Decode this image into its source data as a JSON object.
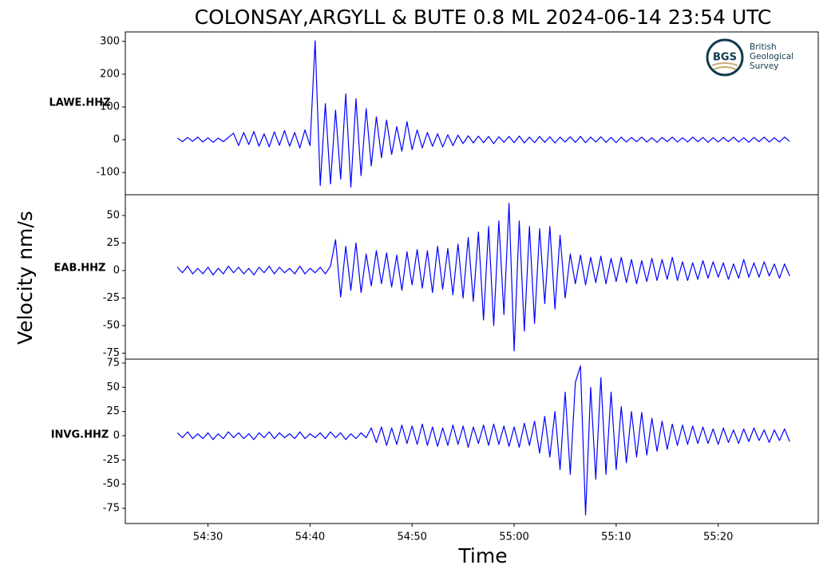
{
  "ylabel": "Velocity nm/s",
  "logo": {
    "mark": "BGS",
    "lines": [
      "British",
      "Geological",
      "Survey"
    ]
  },
  "chart_data": [
    {
      "type": "line",
      "title": "COLONSAY,ARGYLL & BUTE 0.8 ML   2024-06-14 23:54 UTC",
      "station": "LAWE.HHZ",
      "color": "#0000ff",
      "xlim": [
        21.9,
        89.8
      ],
      "ylim": [
        -168,
        329
      ],
      "yticks": [
        -100,
        0,
        100,
        200,
        300
      ],
      "x": [
        27,
        27.5,
        28,
        28.5,
        29,
        29.5,
        30,
        30.5,
        31,
        31.5,
        32,
        32.5,
        33,
        33.5,
        34,
        34.5,
        35,
        35.5,
        36,
        36.5,
        37,
        37.5,
        38,
        38.5,
        39,
        39.5,
        40,
        40.5,
        41,
        41.5,
        42,
        42.5,
        43,
        43.5,
        44,
        44.5,
        45,
        45.5,
        46,
        46.5,
        47,
        47.5,
        48,
        48.5,
        49,
        49.5,
        50,
        50.5,
        51,
        51.5,
        52,
        52.5,
        53,
        53.5,
        54,
        54.5,
        55,
        55.5,
        56,
        56.5,
        57,
        57.5,
        58,
        58.5,
        59,
        59.5,
        60,
        60.5,
        61,
        61.5,
        62,
        62.5,
        63,
        63.5,
        64,
        64.5,
        65,
        65.5,
        66,
        66.5,
        67,
        67.5,
        68,
        68.5,
        69,
        69.5,
        70,
        70.5,
        71,
        71.5,
        72,
        72.5,
        73,
        73.5,
        74,
        74.5,
        75,
        75.5,
        76,
        76.5,
        77,
        77.5,
        78,
        78.5,
        79,
        79.5,
        80,
        80.5,
        81,
        81.5,
        82,
        82.5,
        83,
        83.5,
        84,
        84.5,
        85,
        85.5,
        86,
        86.5,
        87
      ],
      "values": [
        5,
        -6,
        7,
        -5,
        8,
        -7,
        6,
        -8,
        5,
        -6,
        7,
        20,
        -18,
        22,
        -15,
        25,
        -20,
        18,
        -22,
        24,
        -17,
        28,
        -20,
        22,
        -25,
        30,
        -18,
        302,
        -140,
        110,
        -135,
        90,
        -120,
        140,
        -145,
        125,
        -110,
        95,
        -80,
        70,
        -55,
        60,
        -45,
        40,
        -35,
        55,
        -30,
        30,
        -25,
        22,
        -20,
        18,
        -22,
        15,
        -18,
        14,
        -12,
        12,
        -10,
        11,
        -9,
        10,
        -12,
        9,
        -8,
        10,
        -9,
        11,
        -10,
        8,
        -9,
        10,
        -8,
        9,
        -10,
        8,
        -7,
        9,
        -8,
        10,
        -9,
        8,
        -7,
        9,
        -8,
        7,
        -9,
        8,
        -7,
        7,
        -6,
        8,
        -7,
        6,
        -8,
        7,
        -6,
        8,
        -7,
        6,
        -7,
        8,
        -6,
        7,
        -8,
        6,
        -7,
        7,
        -6,
        8,
        -7,
        6,
        -8,
        7,
        -6,
        8,
        -7,
        6,
        -7,
        8,
        -5
      ]
    },
    {
      "type": "line",
      "station": "EAB.HHZ",
      "color": "#0000ff",
      "xlim": [
        21.9,
        89.8
      ],
      "ylim": [
        -80.4,
        68.8
      ],
      "yticks": [
        -75,
        -50,
        -25,
        0,
        25,
        50
      ],
      "x": [
        27,
        27.5,
        28,
        28.5,
        29,
        29.5,
        30,
        30.5,
        31,
        31.5,
        32,
        32.5,
        33,
        33.5,
        34,
        34.5,
        35,
        35.5,
        36,
        36.5,
        37,
        37.5,
        38,
        38.5,
        39,
        39.5,
        40,
        40.5,
        41,
        41.5,
        42,
        42.5,
        43,
        43.5,
        44,
        44.5,
        45,
        45.5,
        46,
        46.5,
        47,
        47.5,
        48,
        48.5,
        49,
        49.5,
        50,
        50.5,
        51,
        51.5,
        52,
        52.5,
        53,
        53.5,
        54,
        54.5,
        55,
        55.5,
        56,
        56.5,
        57,
        57.5,
        58,
        58.5,
        59,
        59.5,
        60,
        60.5,
        61,
        61.5,
        62,
        62.5,
        63,
        63.5,
        64,
        64.5,
        65,
        65.5,
        66,
        66.5,
        67,
        67.5,
        68,
        68.5,
        69,
        69.5,
        70,
        70.5,
        71,
        71.5,
        72,
        72.5,
        73,
        73.5,
        74,
        74.5,
        75,
        75.5,
        76,
        76.5,
        77,
        77.5,
        78,
        78.5,
        79,
        79.5,
        80,
        80.5,
        81,
        81.5,
        82,
        82.5,
        83,
        83.5,
        84,
        84.5,
        85,
        85.5,
        86,
        86.5,
        87
      ],
      "values": [
        3,
        -2,
        4,
        -3,
        2,
        -3,
        3,
        -4,
        2,
        -3,
        4,
        -2,
        3,
        -3,
        2,
        -4,
        3,
        -2,
        4,
        -3,
        3,
        -2,
        2,
        -3,
        4,
        -3,
        2,
        -2,
        3,
        -3,
        4,
        28,
        -24,
        22,
        -18,
        25,
        -20,
        15,
        -14,
        18,
        -12,
        16,
        -15,
        14,
        -18,
        17,
        -13,
        19,
        -16,
        18,
        -20,
        22,
        -17,
        20,
        -22,
        24,
        -25,
        30,
        -28,
        35,
        -45,
        40,
        -50,
        45,
        -40,
        61,
        -73,
        45,
        -55,
        40,
        -48,
        38,
        -30,
        40,
        -35,
        32,
        -25,
        15,
        -12,
        14,
        -13,
        12,
        -11,
        13,
        -12,
        11,
        -10,
        12,
        -11,
        10,
        -12,
        9,
        -10,
        11,
        -9,
        10,
        -8,
        12,
        -9,
        8,
        -9,
        7,
        -8,
        9,
        -7,
        8,
        -6,
        7,
        -8,
        6,
        -7,
        10,
        -6,
        7,
        -6,
        8,
        -5,
        6,
        -7,
        6,
        -5
      ]
    },
    {
      "type": "line",
      "station": "INVG.HHZ",
      "color": "#0000ff",
      "xlabel": "Time",
      "xlim": [
        21.9,
        89.8
      ],
      "ylim": [
        -90.7,
        79.1
      ],
      "yticks": [
        -75,
        -50,
        -25,
        0,
        25,
        50,
        75
      ],
      "xticks": [
        {
          "value": 30,
          "label": "54:30"
        },
        {
          "value": 40,
          "label": "54:40"
        },
        {
          "value": 50,
          "label": "54:50"
        },
        {
          "value": 60,
          "label": "55:00"
        },
        {
          "value": 70,
          "label": "55:10"
        },
        {
          "value": 80,
          "label": "55:20"
        }
      ],
      "x": [
        27,
        27.5,
        28,
        28.5,
        29,
        29.5,
        30,
        30.5,
        31,
        31.5,
        32,
        32.5,
        33,
        33.5,
        34,
        34.5,
        35,
        35.5,
        36,
        36.5,
        37,
        37.5,
        38,
        38.5,
        39,
        39.5,
        40,
        40.5,
        41,
        41.5,
        42,
        42.5,
        43,
        43.5,
        44,
        44.5,
        45,
        45.5,
        46,
        46.5,
        47,
        47.5,
        48,
        48.5,
        49,
        49.5,
        50,
        50.5,
        51,
        51.5,
        52,
        52.5,
        53,
        53.5,
        54,
        54.5,
        55,
        55.5,
        56,
        56.5,
        57,
        57.5,
        58,
        58.5,
        59,
        59.5,
        60,
        60.5,
        61,
        61.5,
        62,
        62.5,
        63,
        63.5,
        64,
        64.5,
        65,
        65.5,
        66,
        66.5,
        67,
        67.5,
        68,
        68.5,
        69,
        69.5,
        70,
        70.5,
        71,
        71.5,
        72,
        72.5,
        73,
        73.5,
        74,
        74.5,
        75,
        75.5,
        76,
        76.5,
        77,
        77.5,
        78,
        78.5,
        79,
        79.5,
        80,
        80.5,
        81,
        81.5,
        82,
        82.5,
        83,
        83.5,
        84,
        84.5,
        85,
        85.5,
        86,
        86.5,
        87
      ],
      "values": [
        3,
        -2,
        4,
        -3,
        2,
        -3,
        3,
        -4,
        2,
        -3,
        4,
        -2,
        3,
        -3,
        2,
        -4,
        3,
        -2,
        4,
        -3,
        3,
        -2,
        2,
        -3,
        4,
        -3,
        2,
        -2,
        3,
        -3,
        4,
        -2,
        3,
        -4,
        2,
        -3,
        3,
        -2,
        8,
        -7,
        9,
        -10,
        8,
        -9,
        11,
        -8,
        10,
        -9,
        12,
        -10,
        9,
        -11,
        8,
        -10,
        11,
        -9,
        10,
        -12,
        9,
        -8,
        11,
        -10,
        12,
        -9,
        10,
        -11,
        9,
        -12,
        13,
        -10,
        15,
        -18,
        20,
        -22,
        25,
        -35,
        45,
        -40,
        55,
        72,
        -82,
        50,
        -45,
        60,
        -40,
        45,
        -35,
        30,
        -28,
        25,
        -22,
        24,
        -20,
        18,
        -16,
        15,
        -14,
        12,
        -10,
        11,
        -9,
        10,
        -8,
        9,
        -8,
        7,
        -9,
        8,
        -7,
        6,
        -8,
        7,
        -6,
        8,
        -5,
        6,
        -7,
        6,
        -5,
        7,
        -6
      ]
    }
  ]
}
